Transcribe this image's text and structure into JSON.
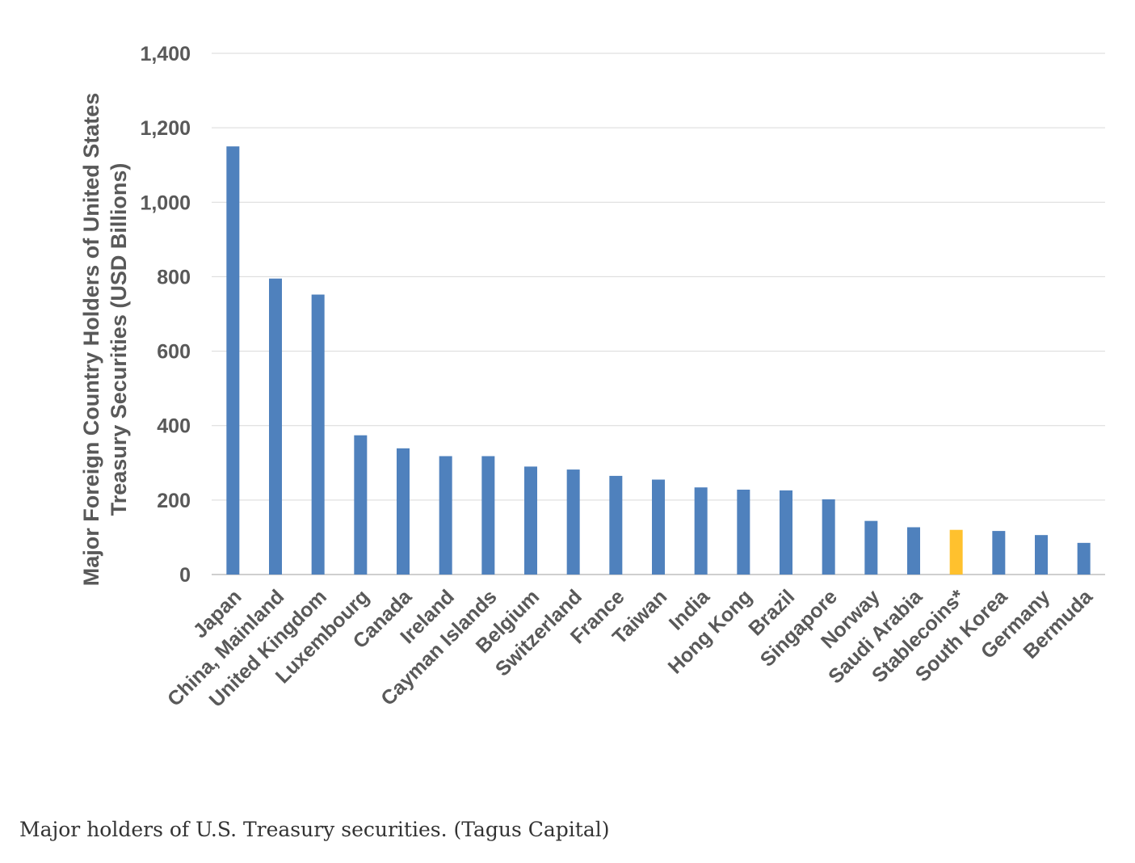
{
  "chart_data": {
    "type": "bar",
    "ylabel_lines": [
      "Major Foreign Country Holders of United States",
      "Treasury Securities  (USD Billions)"
    ],
    "ylim": [
      0,
      1400
    ],
    "yticks": [
      0,
      200,
      400,
      600,
      800,
      1000,
      1200,
      1400
    ],
    "ytick_labels": [
      "0",
      "200",
      "400",
      "600",
      "800",
      "1,000",
      "1,200",
      "1,400"
    ],
    "grid": true,
    "categories": [
      "Japan",
      "China, Mainland",
      "United Kingdom",
      "Luxembourg",
      "Canada",
      "Ireland",
      "Cayman Islands",
      "Belgium",
      "Switzerland",
      "France",
      "Taiwan",
      "India",
      "Hong Kong",
      "Brazil",
      "Singapore",
      "Norway",
      "Saudi Arabia",
      "Stablecoins*",
      "South Korea",
      "Germany",
      "Bermuda"
    ],
    "values": [
      1150,
      795,
      752,
      374,
      339,
      318,
      318,
      290,
      282,
      265,
      255,
      234,
      228,
      226,
      202,
      144,
      127,
      120,
      117,
      106,
      85
    ],
    "colors": {
      "default": "#4F81BD",
      "highlight": "#FFC12E",
      "highlight_category": "Stablecoins*",
      "grid": "#D9D9D9",
      "axis": "#BFBFBF"
    }
  },
  "caption": "Major holders of U.S. Treasury securities. (Tagus Capital)"
}
